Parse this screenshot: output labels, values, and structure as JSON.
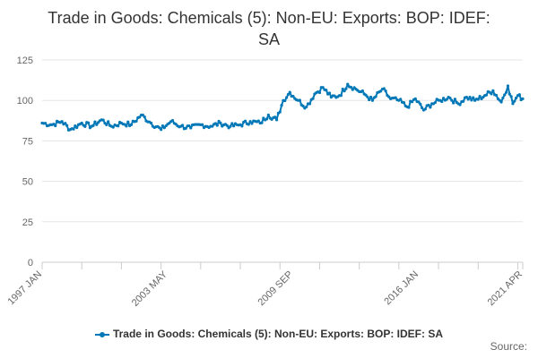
{
  "colors": {
    "series": "#0077b6",
    "grid": "#e6e6e6",
    "axis": "#cccccc"
  },
  "chart_data": {
    "type": "line",
    "title_lines": [
      "Trade in Goods: Chemicals (5): Non-EU: Exports: BOP: IDEF:",
      "SA"
    ],
    "xlabel": "",
    "ylabel": "",
    "ylim": [
      0,
      125
    ],
    "yticks": [
      0,
      25,
      50,
      75,
      100,
      125
    ],
    "xlim": [
      "1997-01",
      "2021-04"
    ],
    "xticks": [
      "1997 JAN",
      "2003 MAY",
      "2009 SEP",
      "2016 JAN",
      "2021 APR"
    ],
    "grid": true,
    "legend_position": "bottom",
    "series": [
      {
        "name": "Trade in Goods: Chemicals (5): Non-EU: Exports: BOP: IDEF: SA",
        "points": [
          [
            "1997-01",
            86
          ],
          [
            "1997-07",
            85
          ],
          [
            "1998-01",
            87
          ],
          [
            "1998-06",
            82
          ],
          [
            "1999-01",
            86
          ],
          [
            "1999-07",
            84
          ],
          [
            "2000-01",
            88
          ],
          [
            "2000-07",
            84
          ],
          [
            "2001-01",
            86
          ],
          [
            "2001-07",
            85
          ],
          [
            "2002-01",
            91
          ],
          [
            "2002-07",
            86
          ],
          [
            "2003-01",
            82
          ],
          [
            "2003-07",
            87
          ],
          [
            "2004-01",
            84
          ],
          [
            "2004-07",
            83
          ],
          [
            "2005-01",
            85
          ],
          [
            "2005-07",
            84
          ],
          [
            "2006-01",
            86
          ],
          [
            "2006-07",
            84
          ],
          [
            "2007-01",
            85
          ],
          [
            "2007-07",
            87
          ],
          [
            "2008-01",
            86
          ],
          [
            "2008-06",
            91
          ],
          [
            "2008-11",
            88
          ],
          [
            "2009-03",
            100
          ],
          [
            "2009-07",
            105
          ],
          [
            "2009-12",
            100
          ],
          [
            "2010-05",
            96
          ],
          [
            "2010-10",
            104
          ],
          [
            "2011-03",
            108
          ],
          [
            "2011-08",
            102
          ],
          [
            "2012-01",
            103
          ],
          [
            "2012-06",
            110
          ],
          [
            "2012-11",
            107
          ],
          [
            "2013-04",
            104
          ],
          [
            "2013-09",
            100
          ],
          [
            "2014-03",
            107
          ],
          [
            "2014-08",
            101
          ],
          [
            "2015-01",
            100
          ],
          [
            "2015-06",
            96
          ],
          [
            "2015-11",
            101
          ],
          [
            "2016-04",
            94
          ],
          [
            "2016-09",
            98
          ],
          [
            "2017-02",
            100
          ],
          [
            "2017-07",
            102
          ],
          [
            "2018-01",
            98
          ],
          [
            "2018-06",
            102
          ],
          [
            "2018-11",
            100
          ],
          [
            "2019-05",
            103
          ],
          [
            "2019-10",
            106
          ],
          [
            "2020-03",
            99
          ],
          [
            "2020-07",
            109
          ],
          [
            "2020-10",
            98
          ],
          [
            "2021-01",
            103
          ],
          [
            "2021-04",
            101
          ]
        ]
      }
    ]
  },
  "source_label": "Source:"
}
